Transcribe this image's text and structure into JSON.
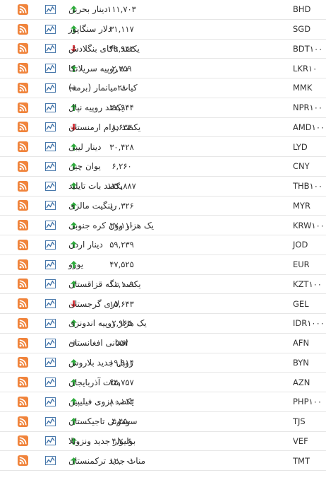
{
  "colors": {
    "up": "#2eaa3c",
    "down": "#d9333a",
    "neutral": "#9a9a9a",
    "rss": "#f0843c",
    "chart": "#3a6ea5"
  },
  "rows": [
    {
      "code": "BHD",
      "name": "دینار بحرین",
      "price": "۱۱۱,۷۰۳",
      "trend": "up"
    },
    {
      "code": "SGD",
      "name": "دلار سنگاپور",
      "price": "۳۱,۱۱۷",
      "trend": "up"
    },
    {
      "code": "BDT۱۰۰",
      "name": "یکصد تاکای بنگلادش",
      "price": "۴۹,۹۴۴",
      "trend": "down"
    },
    {
      "code": "LKR۱۰",
      "name": "ده روپیه سریلانکا",
      "price": "۲,۳۵۹",
      "trend": "up"
    },
    {
      "code": "MMK",
      "name": "کیات میانمار (برمه)",
      "price": "۲۸",
      "trend": "neutral"
    },
    {
      "code": "NPR۱۰۰",
      "name": "یکصد روپیه نپال",
      "price": "۳۷,۹۴۴",
      "trend": "up"
    },
    {
      "code": "AMD۱۰۰",
      "name": "یکصد درام ارمنستان",
      "price": "۸,۶۳۳",
      "trend": "down"
    },
    {
      "code": "LYD",
      "name": "دینار لیبی",
      "price": "۳۰,۴۲۸",
      "trend": "up"
    },
    {
      "code": "CNY",
      "name": "یوان چین",
      "price": "۶,۲۶۰",
      "trend": "up"
    },
    {
      "code": "THB۱۰۰",
      "name": "یکصد بات تایلند",
      "price": "۱۳۲,۸۸۷",
      "trend": "up"
    },
    {
      "code": "MYR",
      "name": "رینگیت مالزی",
      "price": "۱۰,۳۲۶",
      "trend": "up"
    },
    {
      "code": "KRW۱۰۰۰",
      "name": "یک هزار وون کره جنوبی",
      "price": "۳۷,۱۱۰",
      "trend": "up"
    },
    {
      "code": "JOD",
      "name": "دینار اردن",
      "price": "۵۹,۲۳۹",
      "trend": "up"
    },
    {
      "code": "EUR",
      "name": "یورو",
      "price": "۴۷,۵۲۵",
      "trend": "up"
    },
    {
      "code": "KZT۱۰۰",
      "name": "یکصد تنگه قزاقستان",
      "price": "۱۱,۱۰۹",
      "trend": "up"
    },
    {
      "code": "GEL",
      "name": "لاری گرجستان",
      "price": "۱۵,۶۴۳",
      "trend": "down"
    },
    {
      "code": "IDR۱۰۰۰",
      "name": "یک هزار روپیه اندونزی",
      "price": "۲,۹۶۴",
      "trend": "up"
    },
    {
      "code": "AFN",
      "name": "افغانی افغانستان",
      "price": "۵۵۷",
      "trend": "neutral"
    },
    {
      "code": "BYN",
      "name": "روبل جدید بلاروس",
      "price": "۱۹,۹۱۴",
      "trend": "up"
    },
    {
      "code": "AZN",
      "name": "منات آذربایجان",
      "price": "۲۴,۷۵۷",
      "trend": "up"
    },
    {
      "code": "PHP۱۰۰",
      "name": "یکصد پزوی فیلیپین",
      "price": "۸۰,۱۱۳",
      "trend": "up"
    },
    {
      "code": "TJS",
      "name": "سومونی تاجیکستان",
      "price": "۴,۴۵۰",
      "trend": "up"
    },
    {
      "code": "VEF",
      "name": "بولیوار جدید ونزوئلا",
      "price": "۴,۲۰۶",
      "trend": "up"
    },
    {
      "code": "TMT",
      "name": "منات جدید ترکمنستان",
      "price": "۱۲,۰۰۱",
      "trend": "up"
    }
  ]
}
